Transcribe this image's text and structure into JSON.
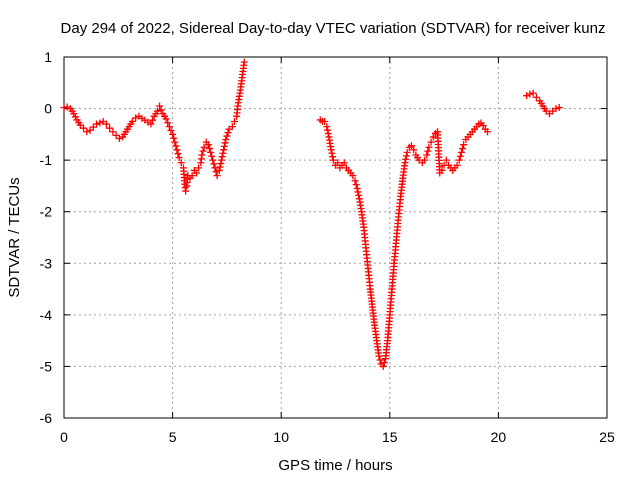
{
  "chart_data": {
    "type": "scatter",
    "title": "Day 294 of 2022, Sidereal Day-to-day VTEC variation (SDTVAR) for receiver kunz",
    "xlabel": "GPS time / hours",
    "ylabel": "SDTVAR / TECUs",
    "xlim": [
      0,
      25
    ],
    "ylim": [
      -6,
      1
    ],
    "xticks": [
      "0",
      "5",
      "10",
      "15",
      "20",
      "25"
    ],
    "yticks": [
      "-6",
      "-5",
      "-4",
      "-3",
      "-2",
      "-1",
      "0",
      "1"
    ],
    "grid": true,
    "marker": "+",
    "color": "#ff0000",
    "series": [
      {
        "points": [
          [
            0.0,
            0.02
          ],
          [
            0.15,
            0.03
          ],
          [
            0.3,
            0.0
          ],
          [
            0.45,
            -0.1
          ],
          [
            0.6,
            -0.22
          ],
          [
            0.75,
            -0.32
          ],
          [
            0.9,
            -0.38
          ],
          [
            1.05,
            -0.45
          ],
          [
            1.2,
            -0.42
          ],
          [
            1.35,
            -0.36
          ],
          [
            1.5,
            -0.3
          ],
          [
            1.65,
            -0.28
          ],
          [
            1.8,
            -0.25
          ],
          [
            1.95,
            -0.3
          ],
          [
            2.1,
            -0.38
          ],
          [
            2.25,
            -0.45
          ],
          [
            2.4,
            -0.52
          ],
          [
            2.55,
            -0.58
          ],
          [
            2.7,
            -0.55
          ],
          [
            2.85,
            -0.45
          ],
          [
            3.0,
            -0.35
          ],
          [
            3.15,
            -0.25
          ],
          [
            3.3,
            -0.18
          ],
          [
            3.45,
            -0.15
          ],
          [
            4.0,
            -0.3
          ],
          [
            4.15,
            -0.15
          ],
          [
            4.3,
            -0.05
          ],
          [
            4.4,
            0.05
          ],
          [
            4.55,
            -0.1
          ],
          [
            4.7,
            -0.2
          ],
          [
            4.85,
            -0.35
          ],
          [
            5.0,
            -0.5
          ],
          [
            5.1,
            -0.65
          ],
          [
            5.2,
            -0.8
          ],
          [
            5.3,
            -0.95
          ],
          [
            5.4,
            -1.05
          ],
          [
            5.5,
            -1.15
          ],
          [
            5.55,
            -1.4
          ],
          [
            5.6,
            -1.6
          ],
          [
            5.65,
            -1.5
          ],
          [
            5.7,
            -1.3
          ],
          [
            5.8,
            -1.35
          ],
          [
            5.9,
            -1.3
          ],
          [
            6.0,
            -1.2
          ],
          [
            6.1,
            -1.25
          ],
          [
            6.2,
            -1.15
          ],
          [
            6.3,
            -1.05
          ],
          [
            6.35,
            -0.9
          ],
          [
            6.45,
            -0.75
          ],
          [
            6.55,
            -0.65
          ],
          [
            6.65,
            -0.7
          ],
          [
            6.75,
            -0.85
          ],
          [
            6.85,
            -1.0
          ],
          [
            6.95,
            -1.15
          ],
          [
            7.05,
            -1.3
          ],
          [
            7.15,
            -1.2
          ],
          [
            7.25,
            -1.0
          ],
          [
            7.35,
            -0.8
          ],
          [
            7.45,
            -0.6
          ],
          [
            7.6,
            -0.4
          ],
          [
            7.75,
            -0.35
          ],
          [
            7.85,
            -0.25
          ],
          [
            7.95,
            -0.15
          ],
          [
            8.0,
            0.05
          ],
          [
            8.1,
            0.3
          ],
          [
            8.2,
            0.6
          ],
          [
            8.3,
            0.9
          ],
          [
            11.8,
            -0.22
          ],
          [
            11.9,
            -0.25
          ],
          [
            12.0,
            -0.25
          ],
          [
            12.1,
            -0.35
          ],
          [
            12.2,
            -0.55
          ],
          [
            12.3,
            -0.8
          ],
          [
            12.4,
            -1.0
          ],
          [
            12.5,
            -1.1
          ],
          [
            12.6,
            -1.05
          ],
          [
            12.7,
            -1.15
          ],
          [
            12.8,
            -1.1
          ],
          [
            12.9,
            -1.05
          ],
          [
            13.0,
            -1.15
          ],
          [
            13.1,
            -1.2
          ],
          [
            13.2,
            -1.25
          ],
          [
            13.3,
            -1.3
          ],
          [
            13.4,
            -1.4
          ],
          [
            13.5,
            -1.55
          ],
          [
            13.6,
            -1.75
          ],
          [
            13.7,
            -2.0
          ],
          [
            13.8,
            -2.3
          ],
          [
            13.9,
            -2.7
          ],
          [
            14.0,
            -3.1
          ],
          [
            14.1,
            -3.5
          ],
          [
            14.2,
            -3.85
          ],
          [
            14.3,
            -4.2
          ],
          [
            14.4,
            -4.5
          ],
          [
            14.5,
            -4.8
          ],
          [
            14.6,
            -4.95
          ],
          [
            14.7,
            -5.0
          ],
          [
            14.8,
            -4.85
          ],
          [
            14.9,
            -4.5
          ],
          [
            15.0,
            -4.0
          ],
          [
            15.1,
            -3.5
          ],
          [
            15.2,
            -3.0
          ],
          [
            15.3,
            -2.55
          ],
          [
            15.4,
            -2.1
          ],
          [
            15.5,
            -1.7
          ],
          [
            15.6,
            -1.35
          ],
          [
            15.7,
            -1.05
          ],
          [
            15.8,
            -0.85
          ],
          [
            15.9,
            -0.75
          ],
          [
            16.0,
            -0.72
          ],
          [
            16.1,
            -0.8
          ],
          [
            16.2,
            -0.9
          ],
          [
            16.35,
            -1.0
          ],
          [
            16.5,
            -1.05
          ],
          [
            16.6,
            -1.0
          ],
          [
            16.7,
            -0.9
          ],
          [
            16.8,
            -0.75
          ],
          [
            16.9,
            -0.65
          ],
          [
            17.0,
            -0.55
          ],
          [
            17.1,
            -0.48
          ],
          [
            17.2,
            -0.45
          ],
          [
            17.3,
            -1.25
          ],
          [
            17.4,
            -1.2
          ],
          [
            17.5,
            -1.1
          ],
          [
            17.6,
            -1.0
          ],
          [
            17.7,
            -1.1
          ],
          [
            17.8,
            -1.15
          ],
          [
            17.9,
            -1.2
          ],
          [
            18.0,
            -1.15
          ],
          [
            18.1,
            -1.1
          ],
          [
            18.2,
            -1.0
          ],
          [
            18.3,
            -0.85
          ],
          [
            18.4,
            -0.7
          ],
          [
            18.5,
            -0.6
          ],
          [
            18.6,
            -0.55
          ],
          [
            18.7,
            -0.5
          ],
          [
            18.8,
            -0.45
          ],
          [
            18.9,
            -0.4
          ],
          [
            19.0,
            -0.35
          ],
          [
            19.1,
            -0.3
          ],
          [
            19.2,
            -0.28
          ],
          [
            19.3,
            -0.33
          ],
          [
            19.4,
            -0.4
          ],
          [
            19.5,
            -0.45
          ],
          [
            21.3,
            0.25
          ],
          [
            21.45,
            0.28
          ],
          [
            21.6,
            0.3
          ],
          [
            21.75,
            0.22
          ],
          [
            21.9,
            0.15
          ],
          [
            22.05,
            0.05
          ],
          [
            22.2,
            -0.05
          ],
          [
            22.35,
            -0.1
          ],
          [
            22.5,
            -0.05
          ],
          [
            22.65,
            0.0
          ],
          [
            22.8,
            0.02
          ]
        ]
      }
    ]
  }
}
